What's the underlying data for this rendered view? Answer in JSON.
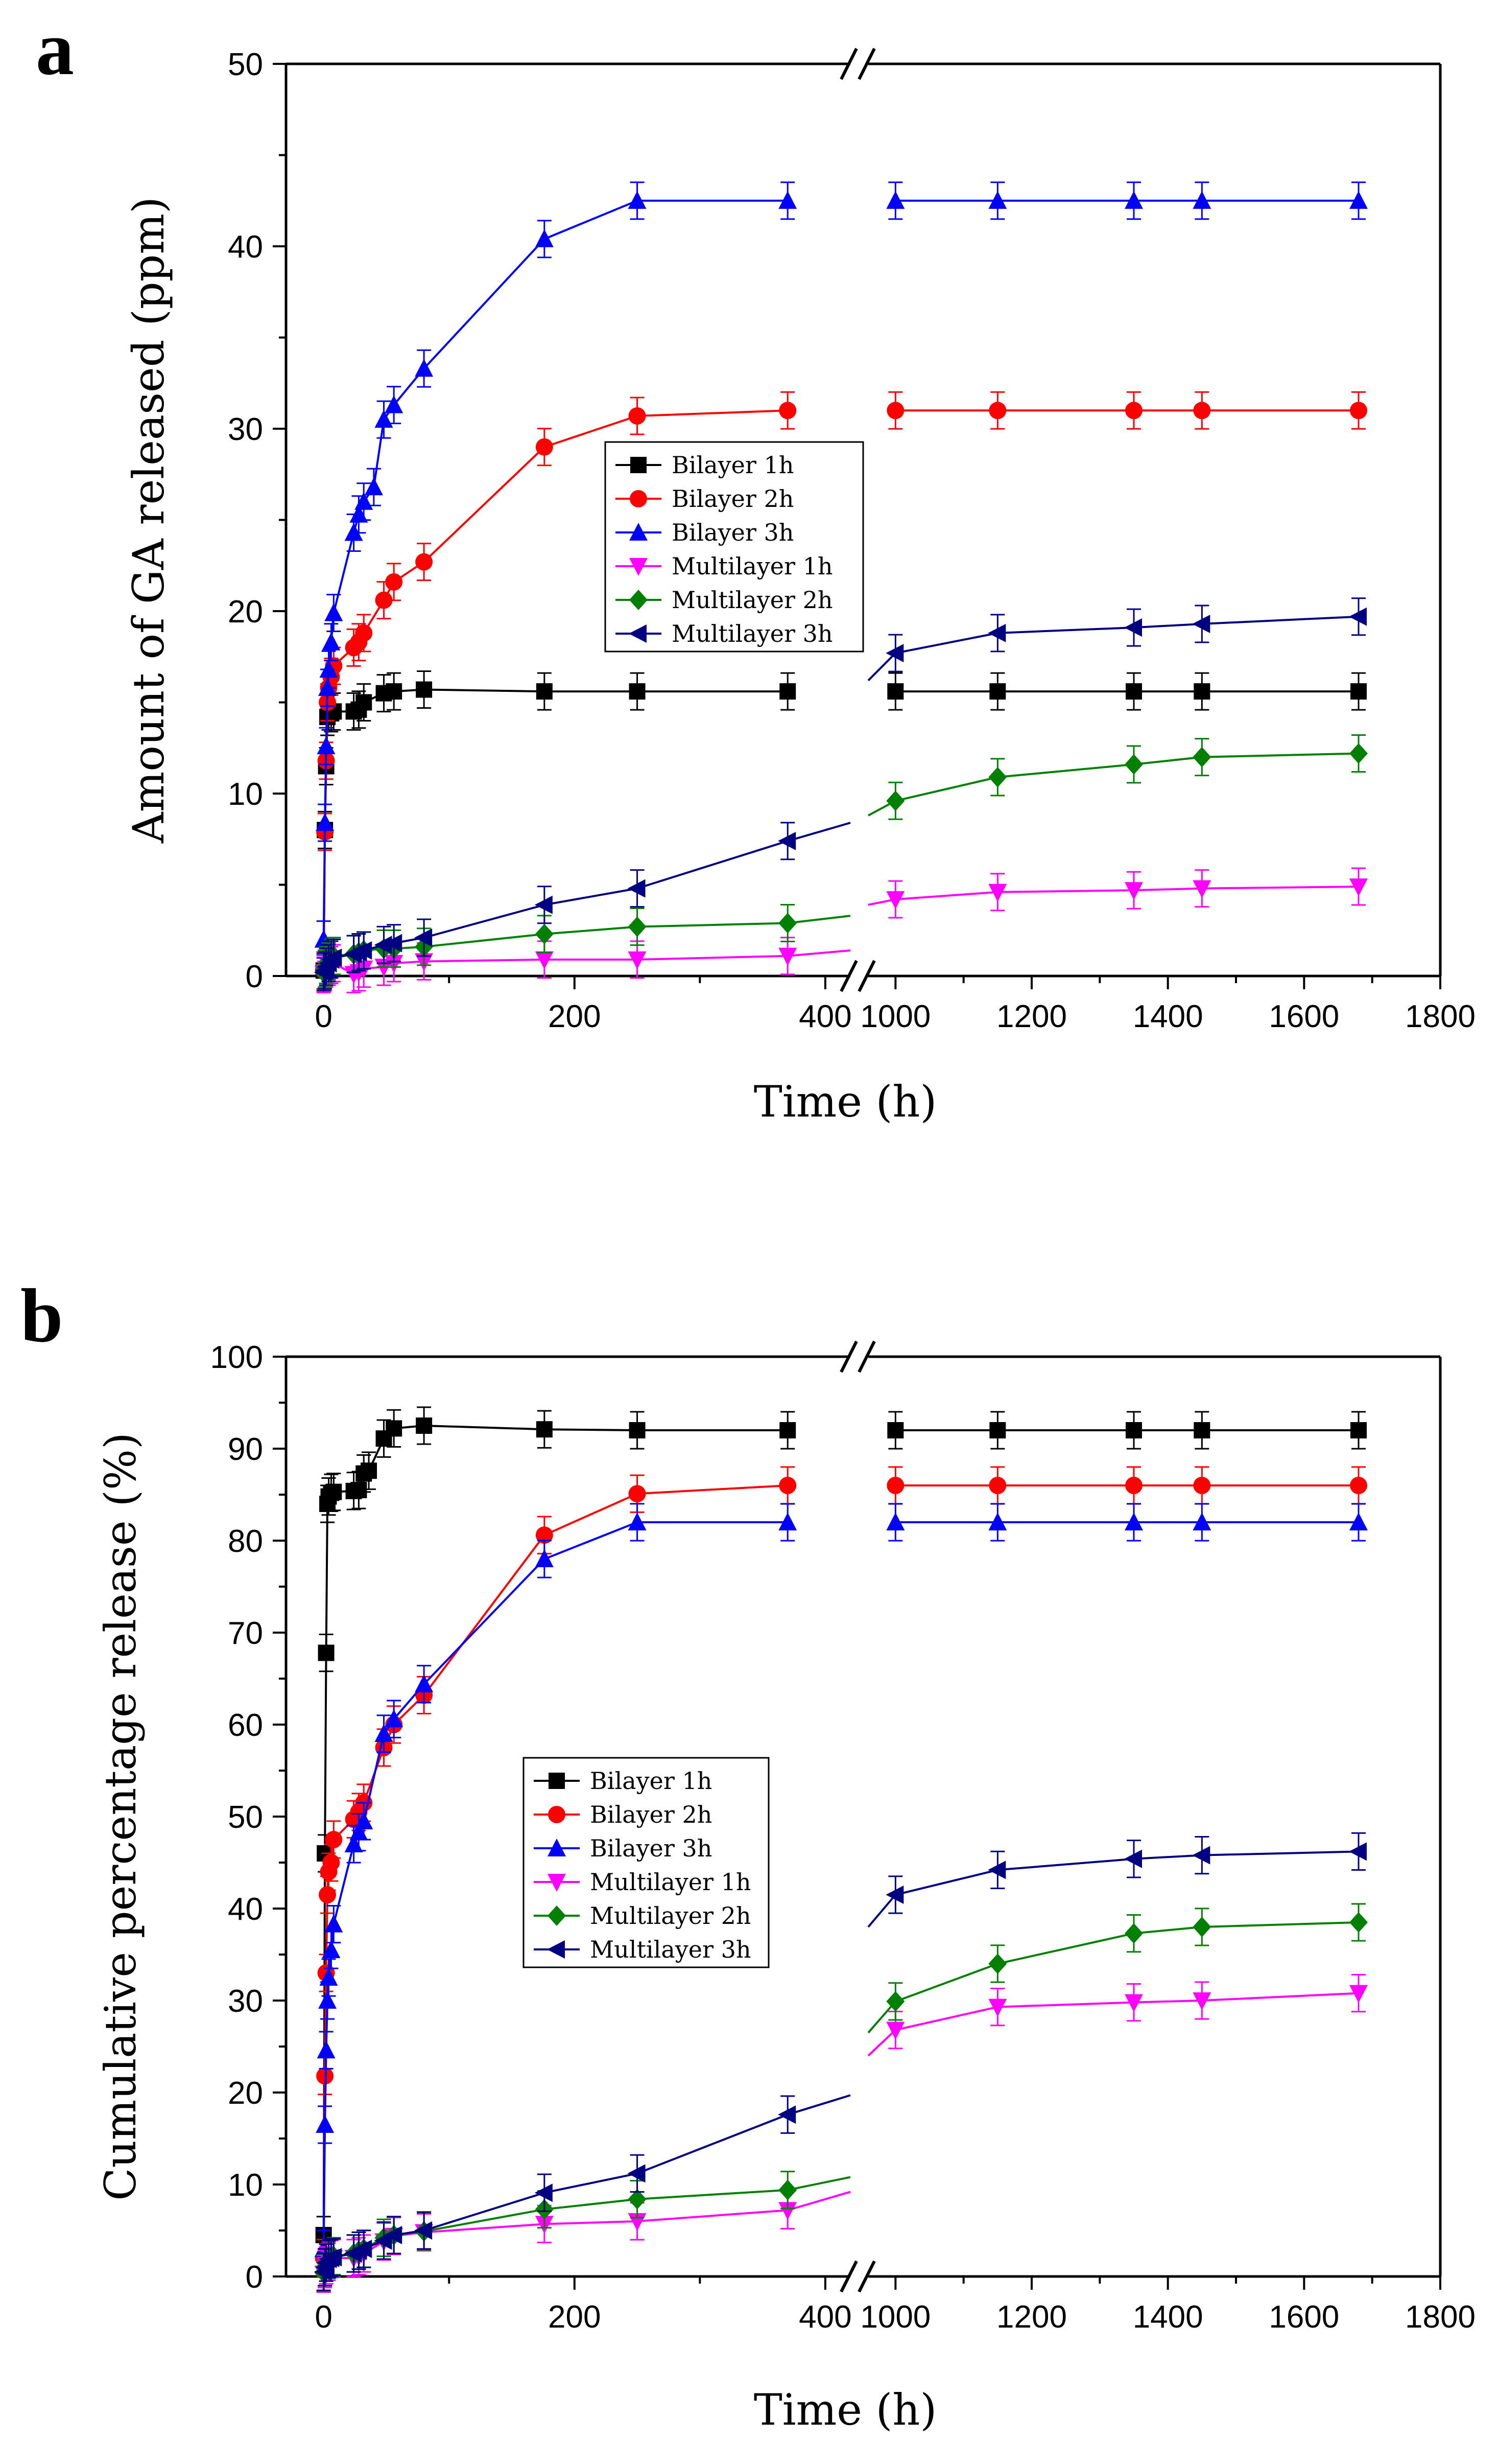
{
  "panel_letters": [
    "a",
    "b"
  ],
  "chart_data": [
    {
      "type": "line",
      "panel": "a",
      "xlabel": "Time (h)",
      "ylabel": "Amount of GA released (ppm)",
      "ylim": [
        0,
        50
      ],
      "yticks": [
        0,
        10,
        20,
        30,
        40,
        50
      ],
      "x_segments": [
        {
          "range": [
            -30,
            420
          ],
          "ticks": [
            0,
            200,
            400
          ]
        },
        {
          "range": [
            960,
            1800
          ],
          "ticks": [
            1000,
            1200,
            1400,
            1600,
            1800
          ]
        }
      ],
      "axis_break": "//",
      "legend_position": "center",
      "series": [
        {
          "name": "Bilayer 1h",
          "color": "#000000",
          "marker": "square",
          "x": [
            0,
            1,
            2,
            3,
            4,
            6,
            8,
            24,
            28,
            32,
            48,
            56,
            80,
            176,
            250,
            370,
            1000,
            1150,
            1350,
            1450,
            1680
          ],
          "y": [
            0.3,
            8.0,
            11.5,
            14.2,
            14.5,
            14.4,
            14.5,
            14.5,
            14.6,
            15.0,
            15.5,
            15.6,
            15.7,
            15.6,
            15.6,
            15.6,
            15.6,
            15.6,
            15.6,
            15.6,
            15.6
          ]
        },
        {
          "name": "Bilayer 2h",
          "color": "#ff0000",
          "marker": "circle",
          "x": [
            0,
            1,
            2,
            3,
            4,
            6,
            8,
            24,
            28,
            32,
            48,
            56,
            80,
            176,
            250,
            370,
            1000,
            1150,
            1350,
            1450,
            1680
          ],
          "y": [
            0.3,
            7.9,
            11.8,
            15.0,
            15.8,
            16.4,
            17.0,
            18.0,
            18.3,
            18.8,
            20.6,
            21.6,
            22.7,
            29.0,
            30.7,
            31.0,
            31.0,
            31.0,
            31.0,
            31.0,
            31.0
          ]
        },
        {
          "name": "Bilayer 3h",
          "color": "#0000ff",
          "marker": "triangle-up",
          "x": [
            0,
            1,
            2,
            3,
            4,
            6,
            8,
            24,
            28,
            32,
            40,
            48,
            56,
            80,
            176,
            250,
            370,
            1000,
            1150,
            1350,
            1450,
            1680
          ],
          "y": [
            2.0,
            8.4,
            12.6,
            15.8,
            16.8,
            18.3,
            19.9,
            24.3,
            25.3,
            26.0,
            26.8,
            30.5,
            31.3,
            33.3,
            40.4,
            42.5,
            42.5,
            42.5,
            42.5,
            42.5,
            42.5,
            42.5
          ]
        },
        {
          "name": "Multilayer 1h",
          "color": "#ff00ff",
          "marker": "triangle-down",
          "x": [
            0,
            1,
            2,
            4,
            6,
            8,
            24,
            28,
            32,
            48,
            56,
            80,
            176,
            250,
            370,
            420,
            960,
            1000,
            1150,
            1350,
            1450,
            1680
          ],
          "y": [
            0.1,
            0.2,
            0.4,
            0.5,
            0.6,
            0.7,
            0.1,
            0.2,
            0.4,
            0.5,
            0.7,
            0.8,
            0.9,
            0.9,
            1.1,
            1.4,
            3.9,
            4.2,
            4.6,
            4.7,
            4.8,
            4.9
          ]
        },
        {
          "name": "Multilayer 2h",
          "color": "#008000",
          "marker": "diamond",
          "x": [
            0,
            1,
            2,
            4,
            6,
            8,
            24,
            28,
            32,
            48,
            56,
            80,
            176,
            250,
            370,
            420,
            960,
            1000,
            1150,
            1350,
            1450,
            1680
          ],
          "y": [
            0.2,
            0.4,
            0.6,
            0.8,
            1.0,
            1.1,
            1.2,
            1.3,
            1.4,
            1.5,
            1.5,
            1.6,
            2.3,
            2.7,
            2.9,
            3.3,
            8.8,
            9.6,
            10.9,
            11.6,
            12.0,
            12.2
          ]
        },
        {
          "name": "Multilayer 3h",
          "color": "#000080",
          "marker": "triangle-left",
          "x": [
            0,
            1,
            2,
            4,
            6,
            8,
            24,
            28,
            32,
            48,
            56,
            80,
            176,
            250,
            370,
            420,
            960,
            1000,
            1150,
            1350,
            1450,
            1680
          ],
          "y": [
            0.2,
            0.3,
            0.5,
            0.7,
            0.9,
            1.0,
            1.2,
            1.3,
            1.4,
            1.7,
            1.8,
            2.1,
            3.9,
            4.8,
            7.4,
            8.4,
            16.2,
            17.7,
            18.8,
            19.1,
            19.3,
            19.7
          ]
        }
      ]
    },
    {
      "type": "line",
      "panel": "b",
      "xlabel": "Time (h)",
      "ylabel": "Cumulative percentage release (%)",
      "ylim": [
        0,
        100
      ],
      "yticks": [
        0,
        10,
        20,
        30,
        40,
        50,
        60,
        70,
        80,
        90,
        100
      ],
      "x_segments": [
        {
          "range": [
            -30,
            420
          ],
          "ticks": [
            0,
            200,
            400
          ]
        },
        {
          "range": [
            960,
            1800
          ],
          "ticks": [
            1000,
            1200,
            1400,
            1600,
            1800
          ]
        }
      ],
      "axis_break": "//",
      "legend_position": "center",
      "series": [
        {
          "name": "Bilayer 1h",
          "color": "#000000",
          "marker": "square",
          "x": [
            0,
            1,
            2,
            3,
            4,
            6,
            8,
            24,
            28,
            32,
            36,
            48,
            56,
            80,
            176,
            250,
            370,
            1000,
            1150,
            1350,
            1450,
            1680
          ],
          "y": [
            4.5,
            46.0,
            67.8,
            84.0,
            84.8,
            85.2,
            85.3,
            85.4,
            85.5,
            87.3,
            87.6,
            91.1,
            92.2,
            92.5,
            92.1,
            92.0,
            92.0,
            92.0,
            92.0,
            92.0,
            92.0,
            92.0
          ]
        },
        {
          "name": "Bilayer 2h",
          "color": "#ff0000",
          "marker": "circle",
          "x": [
            0,
            1,
            2,
            3,
            4,
            6,
            8,
            24,
            28,
            32,
            48,
            56,
            80,
            176,
            250,
            370,
            1000,
            1150,
            1350,
            1450,
            1680
          ],
          "y": [
            2.0,
            21.8,
            33.0,
            41.5,
            44.0,
            45.0,
            47.5,
            49.7,
            50.5,
            51.5,
            57.5,
            60.0,
            63.2,
            80.6,
            85.1,
            86.0,
            86.0,
            86.0,
            86.0,
            86.0,
            86.0
          ]
        },
        {
          "name": "Bilayer 3h",
          "color": "#0000ff",
          "marker": "triangle-up",
          "x": [
            0,
            1,
            2,
            3,
            4,
            6,
            8,
            24,
            28,
            32,
            48,
            56,
            80,
            176,
            250,
            370,
            1000,
            1150,
            1350,
            1450,
            1680
          ],
          "y": [
            3.0,
            16.5,
            24.6,
            30.0,
            32.5,
            35.5,
            38.3,
            47.0,
            48.3,
            49.5,
            59.0,
            60.6,
            64.4,
            78.0,
            82.0,
            82.0,
            82.0,
            82.0,
            82.0,
            82.0,
            82.0
          ]
        },
        {
          "name": "Multilayer 1h",
          "color": "#ff00ff",
          "marker": "triangle-down",
          "x": [
            0,
            1,
            2,
            4,
            6,
            8,
            24,
            28,
            32,
            48,
            56,
            80,
            176,
            250,
            370,
            420,
            960,
            1000,
            1150,
            1350,
            1450,
            1680
          ],
          "y": [
            0.3,
            0.8,
            1.2,
            1.6,
            1.9,
            2.0,
            2.0,
            2.2,
            2.5,
            3.8,
            4.4,
            4.8,
            5.7,
            6.0,
            7.2,
            9.2,
            24.0,
            26.8,
            29.3,
            29.8,
            30.0,
            30.8
          ]
        },
        {
          "name": "Multilayer 2h",
          "color": "#008000",
          "marker": "diamond",
          "x": [
            0,
            1,
            2,
            4,
            6,
            8,
            24,
            28,
            32,
            48,
            56,
            80,
            176,
            250,
            370,
            420,
            960,
            1000,
            1150,
            1350,
            1450,
            1680
          ],
          "y": [
            0.4,
            1.0,
            1.5,
            1.8,
            2.0,
            2.2,
            2.5,
            2.8,
            3.0,
            4.2,
            4.5,
            4.9,
            7.3,
            8.4,
            9.4,
            10.8,
            26.5,
            29.9,
            34.0,
            37.3,
            38.0,
            38.5
          ]
        },
        {
          "name": "Multilayer 3h",
          "color": "#000080",
          "marker": "triangle-left",
          "x": [
            0,
            1,
            2,
            4,
            6,
            8,
            24,
            28,
            32,
            48,
            56,
            80,
            176,
            250,
            370,
            420,
            960,
            1000,
            1150,
            1350,
            1450,
            1680
          ],
          "y": [
            0.5,
            1.0,
            1.5,
            1.9,
            2.0,
            2.1,
            2.5,
            2.8,
            3.0,
            3.9,
            4.5,
            5.0,
            9.1,
            11.2,
            17.6,
            19.7,
            38.0,
            41.5,
            44.2,
            45.4,
            45.8,
            46.2
          ]
        }
      ]
    }
  ]
}
